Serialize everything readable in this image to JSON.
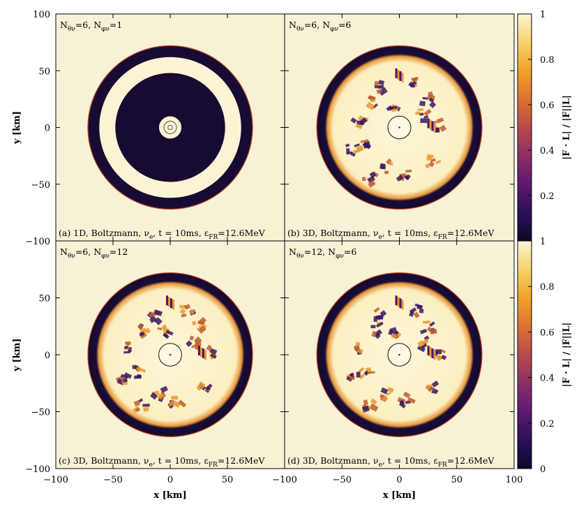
{
  "chart_data": {
    "type": "heatmap",
    "xlabel": "x [km]",
    "ylabel": "y [km]",
    "xlim": [
      -100,
      100
    ],
    "ylim": [
      -100,
      100
    ],
    "x_ticks": [
      "−100",
      "−50",
      "0",
      "50",
      "100"
    ],
    "y_ticks": [
      "100",
      "50",
      "0",
      "−50",
      "−100"
    ],
    "colorbar": {
      "label": "|F · L| / |F||L|",
      "range": [
        0,
        1
      ],
      "ticks_top": [
        "1",
        "0.8",
        "0.6",
        "0.4",
        "0.2"
      ],
      "ticks_bottom": [
        "1",
        "0.8",
        "0.6",
        "0.4",
        "0.2",
        "0"
      ],
      "colors": [
        "#0d0829",
        "#2c0f5a",
        "#5c1a6e",
        "#8c2f66",
        "#b94a4a",
        "#dd7230",
        "#f0a228",
        "#f5d36a",
        "#fbf5d3"
      ]
    },
    "panels": [
      {
        "id": "a",
        "resolution_base": "N",
        "resolution_theta_sub": "θν",
        "resolution_sep": "=6, ",
        "resolution_base2": "N",
        "resolution_phi_sub": "φν",
        "resolution_tail": "=1",
        "caption_pre": "(a) 1D, Boltzmann, ν",
        "caption_nu_sub": "e",
        "caption_t": ", t = 10ms, ε",
        "caption_eps_sub": "FR",
        "caption_tail": "=12.6MeV",
        "outer_radius_km": 72,
        "inner_radius_km": 62,
        "middle_radius_km": 48,
        "core_radius_km": 10
      },
      {
        "id": "b",
        "resolution_base": "N",
        "resolution_theta_sub": "θν",
        "resolution_sep": "=6, ",
        "resolution_base2": "N",
        "resolution_phi_sub": "φν",
        "resolution_tail": "=6",
        "caption_pre": "(b) 3D, Boltzmann, ν",
        "caption_nu_sub": "e",
        "caption_t": ", t = 10ms, ε",
        "caption_eps_sub": "FR",
        "caption_tail": "=12.6MeV",
        "outer_radius_km": 72,
        "inner_radius_km": 62,
        "core_radius_km": 10
      },
      {
        "id": "c",
        "resolution_base": "N",
        "resolution_theta_sub": "θν",
        "resolution_sep": "=6, ",
        "resolution_base2": "N",
        "resolution_phi_sub": "φν",
        "resolution_tail": "=12",
        "caption_pre": "(c) 3D, Boltzmann, ν",
        "caption_nu_sub": "e",
        "caption_t": ", t = 10ms, ε",
        "caption_eps_sub": "FR",
        "caption_tail": "=12.6MeV",
        "outer_radius_km": 72,
        "inner_radius_km": 62,
        "core_radius_km": 10
      },
      {
        "id": "d",
        "resolution_base": "N",
        "resolution_theta_sub": "θν",
        "resolution_sep": "=12, ",
        "resolution_base2": "N",
        "resolution_phi_sub": "φν",
        "resolution_tail": "=6",
        "caption_pre": "(d) 3D, Boltzmann, ν",
        "caption_nu_sub": "e",
        "caption_t": ", t = 10ms, ε",
        "caption_eps_sub": "FR",
        "caption_tail": "=12.6MeV",
        "outer_radius_km": 72,
        "inner_radius_km": 62,
        "core_radius_km": 10
      }
    ]
  }
}
